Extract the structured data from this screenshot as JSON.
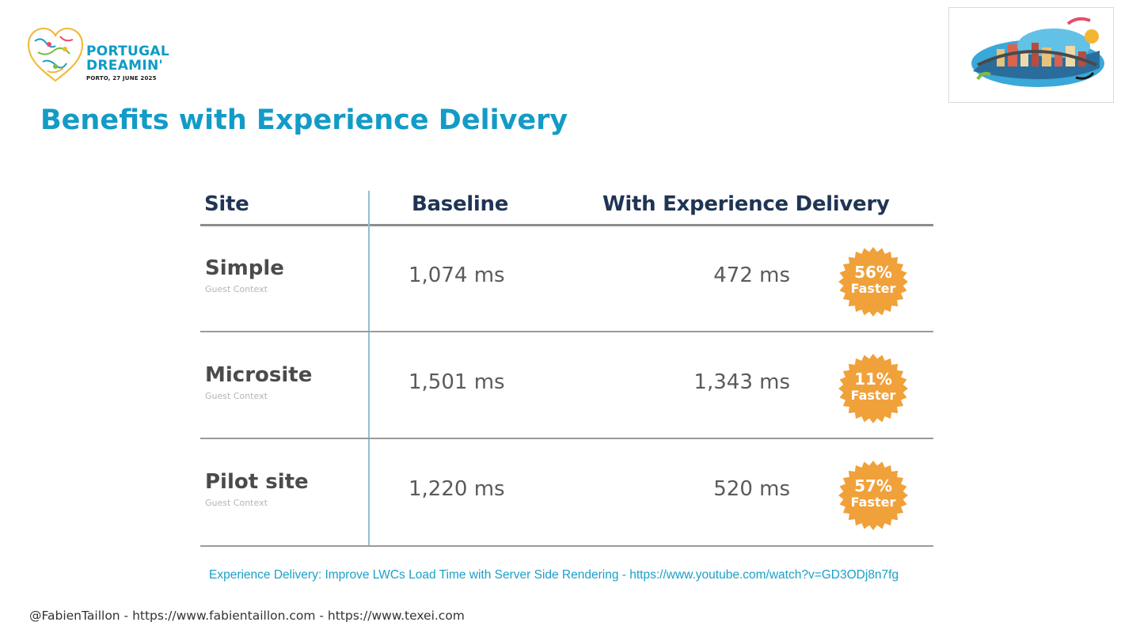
{
  "logo": {
    "line1": "PORTUGAL",
    "line2": "DREAMIN'",
    "line3": "PORTO, 27 JUNE 2025",
    "icon": "heart-map-logo-icon"
  },
  "event_image": {
    "icon": "porto-illustration-image"
  },
  "title": "Benefits with Experience Delivery",
  "table": {
    "headers": {
      "site": "Site",
      "baseline": "Baseline",
      "experience_delivery": "With Experience Delivery"
    },
    "rows": [
      {
        "site": "Simple",
        "context": "Guest Context",
        "baseline": "1,074 ms",
        "experience_delivery": "472 ms",
        "badge_pct": "56%",
        "badge_word": "Faster"
      },
      {
        "site": "Microsite",
        "context": "Guest Context",
        "baseline": "1,501 ms",
        "experience_delivery": "1,343 ms",
        "badge_pct": "11%",
        "badge_word": "Faster"
      },
      {
        "site": "Pilot site",
        "context": "Guest Context",
        "baseline": "1,220 ms",
        "experience_delivery": "520 ms",
        "badge_pct": "57%",
        "badge_word": "Faster"
      }
    ]
  },
  "source_link": "Experience Delivery: Improve LWCs Load Time with Server Side Rendering - https://www.youtube.com/watch?v=GD3ODj8n7fg",
  "footer": "@FabienTaillon - https://www.fabientaillon.com - https://www.texei.com",
  "colors": {
    "title": "#139bc7",
    "badge": "#f0a13a",
    "header_text": "#1f3554"
  }
}
